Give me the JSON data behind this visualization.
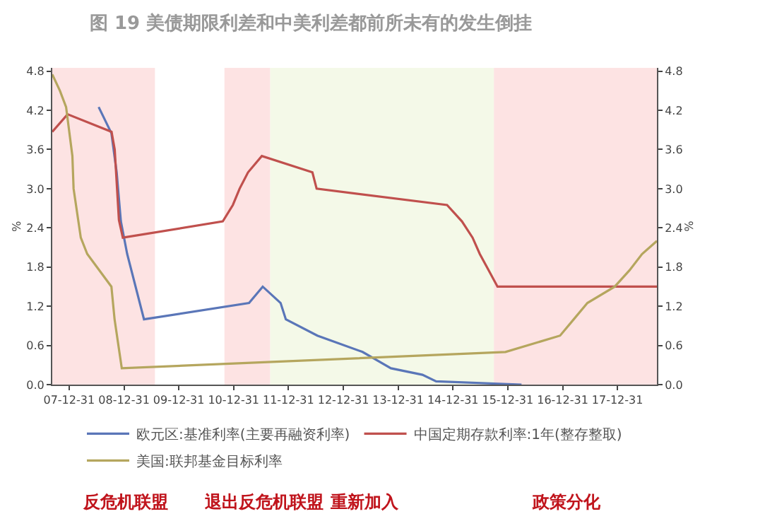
{
  "chart_data": {
    "type": "line",
    "title": "图 19 美债期限利差和中美利差都前所未有的发生倒挂",
    "ylabel": "%",
    "y2label": "%",
    "xlim": [
      "2007-09-10",
      "2018-09-20"
    ],
    "xticks": [
      {
        "value": "2007-12-31",
        "label": "07-12-31"
      },
      {
        "value": "2008-12-31",
        "label": "08-12-31"
      },
      {
        "value": "2009-12-31",
        "label": "09-12-31"
      },
      {
        "value": "2010-12-31",
        "label": "10-12-31"
      },
      {
        "value": "2011-12-31",
        "label": "11-12-31"
      },
      {
        "value": "2012-12-31",
        "label": "12-12-31"
      },
      {
        "value": "2013-12-31",
        "label": "13-12-31"
      },
      {
        "value": "2014-12-31",
        "label": "14-12-31"
      },
      {
        "value": "2015-12-31",
        "label": "15-12-31"
      },
      {
        "value": "2016-12-31",
        "label": "16-12-31"
      },
      {
        "value": "2017-12-31",
        "label": "17-12-31"
      }
    ],
    "ylim": [
      0,
      4.85
    ],
    "yticks": [
      {
        "value": 0,
        "label": "0.0"
      },
      0.6,
      1.2,
      1.8,
      2.4,
      {
        "value": 3,
        "label": "3.0"
      },
      3.6,
      4.2,
      4.8
    ],
    "y2lim": [
      0,
      4.85
    ],
    "y2ticks": [
      {
        "value": 0,
        "label": "0.0"
      },
      0.6,
      1.2,
      1.8,
      2.4,
      {
        "value": 3,
        "label": "3.0"
      },
      3.6,
      4.2,
      4.8
    ],
    "annotations": [
      "反危机联盟",
      "退出反危机联盟",
      "重新加入",
      "政策分化"
    ],
    "grid": false,
    "legend": "bottom",
    "marker": "none",
    "line_style": "solid",
    "series": [
      {
        "name": "欧元区:基准利率(主要再融资利率)",
        "color": "#5a76b8",
        "x": [
          "2008-07-15",
          "2008-10-08",
          "2008-11-12",
          "2008-12-10",
          "2009-01-21",
          "2009-05-13",
          "2011-04-13",
          "2011-07-13",
          "2011-11-09",
          "2011-12-14",
          "2012-07-11",
          "2013-05-08",
          "2013-11-13",
          "2014-06-11",
          "2014-09-10",
          "2016-04-01"
        ],
        "values": [
          4.25,
          3.85,
          3.25,
          2.5,
          2.0,
          1.0,
          1.25,
          1.5,
          1.25,
          1.0,
          0.75,
          0.5,
          0.25,
          0.15,
          0.05,
          0.0
        ]
      },
      {
        "name": "中国定期存款利率:1年(整存整取)",
        "color": "#c0504d",
        "x": [
          "2007-09-10",
          "2007-12-21",
          "2008-10-09",
          "2008-10-30",
          "2008-11-27",
          "2008-12-23",
          "2010-10-20",
          "2010-12-26",
          "2011-02-09",
          "2011-04-06",
          "2011-07-07",
          "2012-06-08",
          "2012-07-06",
          "2014-11-22",
          "2015-03-01",
          "2015-05-11",
          "2015-06-28",
          "2015-08-26",
          "2015-10-24",
          "2018-09-20"
        ],
        "values": [
          3.87,
          4.14,
          3.87,
          3.6,
          2.52,
          2.25,
          2.5,
          2.75,
          3.0,
          3.25,
          3.5,
          3.25,
          3.0,
          2.75,
          2.5,
          2.25,
          2.0,
          1.75,
          1.5,
          1.5
        ]
      },
      {
        "name": "美国:联邦基金目标利率",
        "color": "#b5a65e",
        "x": [
          "2007-09-10",
          "2007-10-31",
          "2007-12-11",
          "2008-01-22",
          "2008-01-30",
          "2008-03-18",
          "2008-04-30",
          "2008-10-08",
          "2008-10-29",
          "2008-12-16",
          "2015-12-16",
          "2016-12-14",
          "2017-03-15",
          "2017-06-14",
          "2017-12-13",
          "2018-03-21",
          "2018-06-13",
          "2018-09-20"
        ],
        "values": [
          4.75,
          4.5,
          4.25,
          3.5,
          3.0,
          2.25,
          2.0,
          1.5,
          1.0,
          0.25,
          0.5,
          0.75,
          1.0,
          1.25,
          1.5,
          1.75,
          2.0,
          2.2
        ]
      }
    ],
    "bands": [
      {
        "axis": "x",
        "from": "2007-09-10",
        "to": "2009-07-25",
        "color": "#fde3e3"
      },
      {
        "axis": "x",
        "from": "2010-10-31",
        "to": "2011-09-01",
        "color": "#fde3e3"
      },
      {
        "axis": "x",
        "from": "2011-09-01",
        "to": "2015-09-30",
        "color": "#f4f9e8"
      },
      {
        "axis": "x",
        "from": "2015-09-30",
        "to": "2018-09-20",
        "color": "#fde3e3"
      }
    ]
  }
}
